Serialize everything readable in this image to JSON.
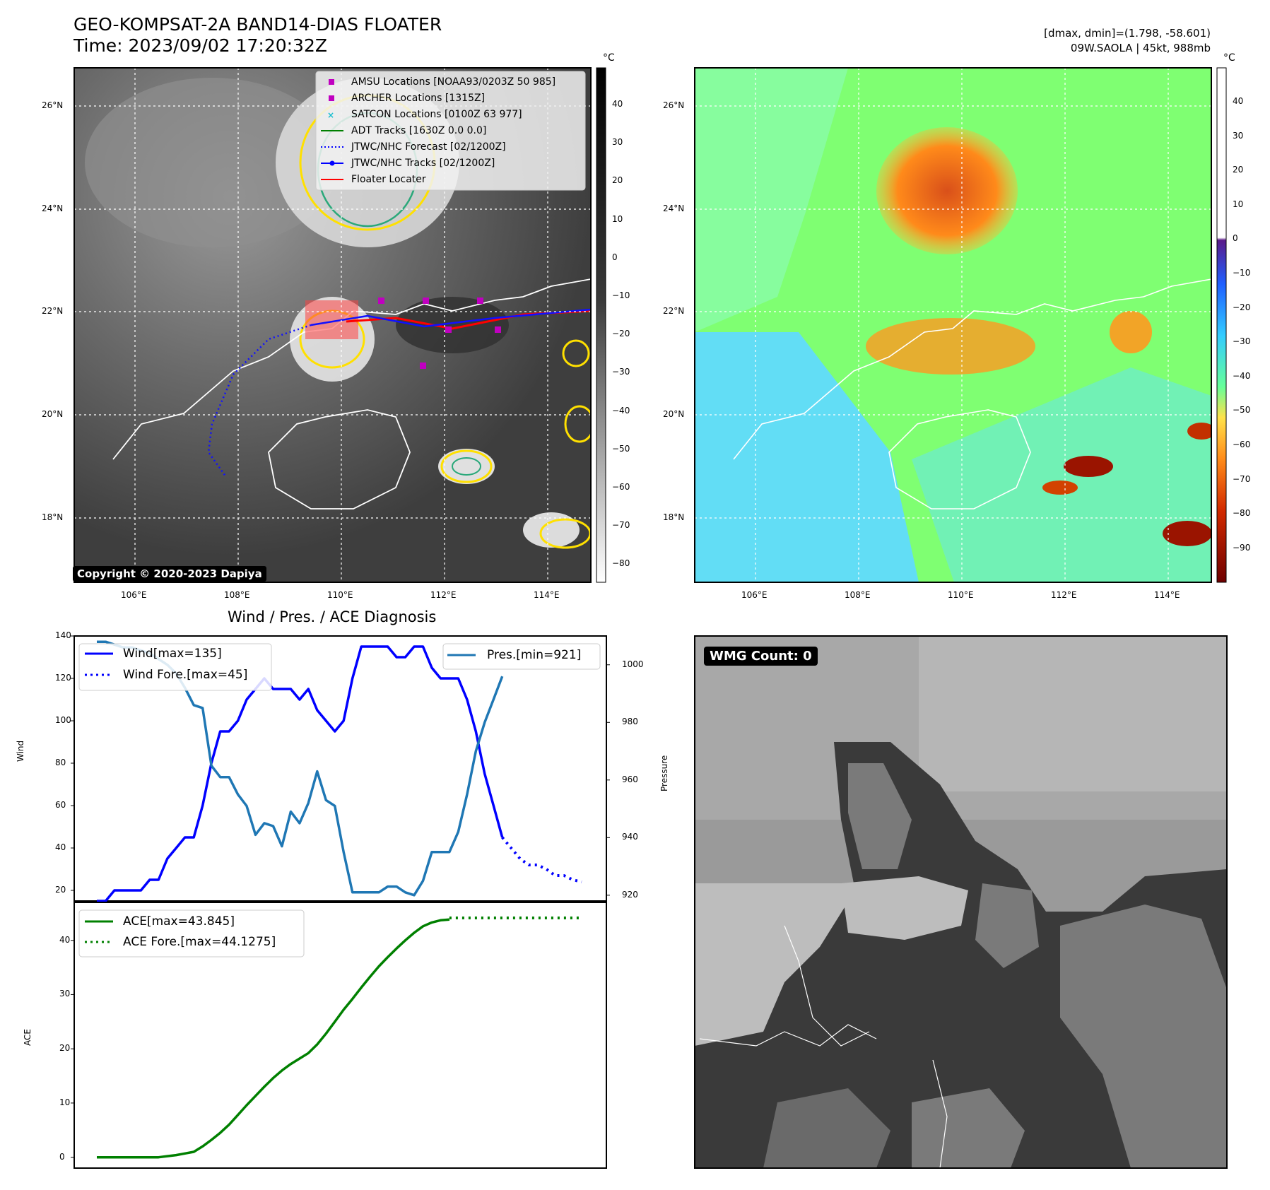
{
  "header": {
    "title_line1": "GEO-KOMPSAT-2A BAND14-DIAS FLOATER",
    "title_line2": "Time: 2023/09/02 17:20:32Z",
    "right_line1": "[dmax, dmin]=(1.798, -58.601)",
    "right_line2": "09W.SAOLA | 45kt, 988mb"
  },
  "map_axes": {
    "lat_labels": [
      "26°N",
      "24°N",
      "22°N",
      "20°N",
      "18°N"
    ],
    "lon_labels": [
      "106°E",
      "108°E",
      "110°E",
      "112°E",
      "114°E"
    ]
  },
  "colorbar_left": {
    "unit": "°C",
    "ticks": [
      "40",
      "30",
      "20",
      "10",
      "0",
      "−10",
      "−20",
      "−30",
      "−40",
      "−50",
      "−60",
      "−70",
      "−80"
    ]
  },
  "colorbar_right": {
    "unit": "°C",
    "ticks": [
      "40",
      "30",
      "20",
      "10",
      "0",
      "−10",
      "−20",
      "−30",
      "−40",
      "−50",
      "−60",
      "−70",
      "−80",
      "−90"
    ]
  },
  "legend_map": [
    {
      "label": "AMSU Locations [NOAA93/0203Z 50 985]",
      "color": "#c000c0",
      "marker": "square"
    },
    {
      "label": "ARCHER Locations [1315Z]",
      "color": "#c000c0",
      "marker": "square"
    },
    {
      "label": "SATCON Locations [0100Z 63 977]",
      "color": "#17becf",
      "marker": "x"
    },
    {
      "label": "ADT Tracks [1630Z 0.0 0.0]",
      "color": "#008000",
      "marker": "line"
    },
    {
      "label": "JTWC/NHC Forecast [02/1200Z]",
      "color": "#0000ff",
      "marker": "dotted"
    },
    {
      "label": "JTWC/NHC Tracks [02/1200Z]",
      "color": "#0000ff",
      "marker": "line-dot"
    },
    {
      "label": "Floater Locater",
      "color": "#ff0000",
      "marker": "line"
    }
  ],
  "copyright": "Copyright © 2020-2023 Dapiya",
  "wmg_label": "WMG Count: 0",
  "chart_data": [
    {
      "type": "line",
      "title": "Wind / Pres. / ACE Diagnosis",
      "ylabel": "Wind",
      "ylabel_right": "Pressure",
      "ylim": [
        15,
        140
      ],
      "ylim_right": [
        918,
        1010
      ],
      "yticks": [
        20,
        40,
        60,
        80,
        100,
        120,
        140
      ],
      "yticks_right": [
        920,
        940,
        960,
        980,
        1000
      ],
      "series": [
        {
          "name": "Wind[max=135]",
          "color": "#0000ff",
          "style": "solid",
          "values": [
            15,
            15,
            20,
            20,
            20,
            20,
            25,
            25,
            35,
            40,
            45,
            45,
            60,
            80,
            95,
            95,
            100,
            110,
            115,
            120,
            115,
            115,
            115,
            110,
            115,
            105,
            100,
            95,
            100,
            120,
            135,
            135,
            135,
            135,
            130,
            130,
            135,
            135,
            125,
            120,
            120,
            120,
            110,
            95,
            75,
            60,
            45
          ]
        },
        {
          "name": "Wind Fore.[max=45]",
          "color": "#0000ff",
          "style": "dotted",
          "start_index": 46,
          "values": [
            45,
            40,
            35,
            32,
            32,
            30,
            27,
            27,
            25,
            24
          ]
        },
        {
          "name": "Pres.[min=921]",
          "color": "#1f77b4",
          "style": "solid",
          "axis": "right",
          "values": [
            1008,
            1008,
            1007,
            1006,
            1006,
            1005,
            1004,
            1002,
            1000,
            997,
            992,
            986,
            985,
            965,
            961,
            961,
            955,
            951,
            941,
            945,
            944,
            937,
            949,
            945,
            952,
            963,
            953,
            951,
            935,
            921,
            921,
            921,
            921,
            923,
            923,
            921,
            920,
            925,
            935,
            935,
            935,
            942,
            955,
            970,
            980,
            988,
            996
          ]
        }
      ]
    },
    {
      "type": "line",
      "ylabel": "ACE",
      "ylim": [
        -2,
        47
      ],
      "yticks": [
        0,
        10,
        20,
        30,
        40
      ],
      "series": [
        {
          "name": "ACE[max=43.845]",
          "color": "#008000",
          "style": "solid",
          "values": [
            0,
            0,
            0,
            0,
            0,
            0,
            0,
            0,
            0.2,
            0.4,
            0.7,
            1,
            2,
            3.2,
            4.5,
            6,
            7.8,
            9.6,
            11.3,
            13,
            14.6,
            16,
            17.2,
            18.2,
            19.2,
            20.8,
            22.8,
            25,
            27.2,
            29.2,
            31.3,
            33.3,
            35.2,
            36.9,
            38.5,
            40,
            41.4,
            42.6,
            43.3,
            43.7,
            43.845
          ]
        },
        {
          "name": "ACE Fore.[max=44.1275]",
          "color": "#008000",
          "style": "dotted",
          "start_index": 40,
          "values": [
            44.1275,
            44.1275,
            44.1275,
            44.1275,
            44.1275,
            44.1275,
            44.1275,
            44.1275,
            44.1275,
            44.1275,
            44.1275,
            44.1275,
            44.1275,
            44.1275,
            44.1275,
            44.1275
          ]
        }
      ]
    }
  ]
}
